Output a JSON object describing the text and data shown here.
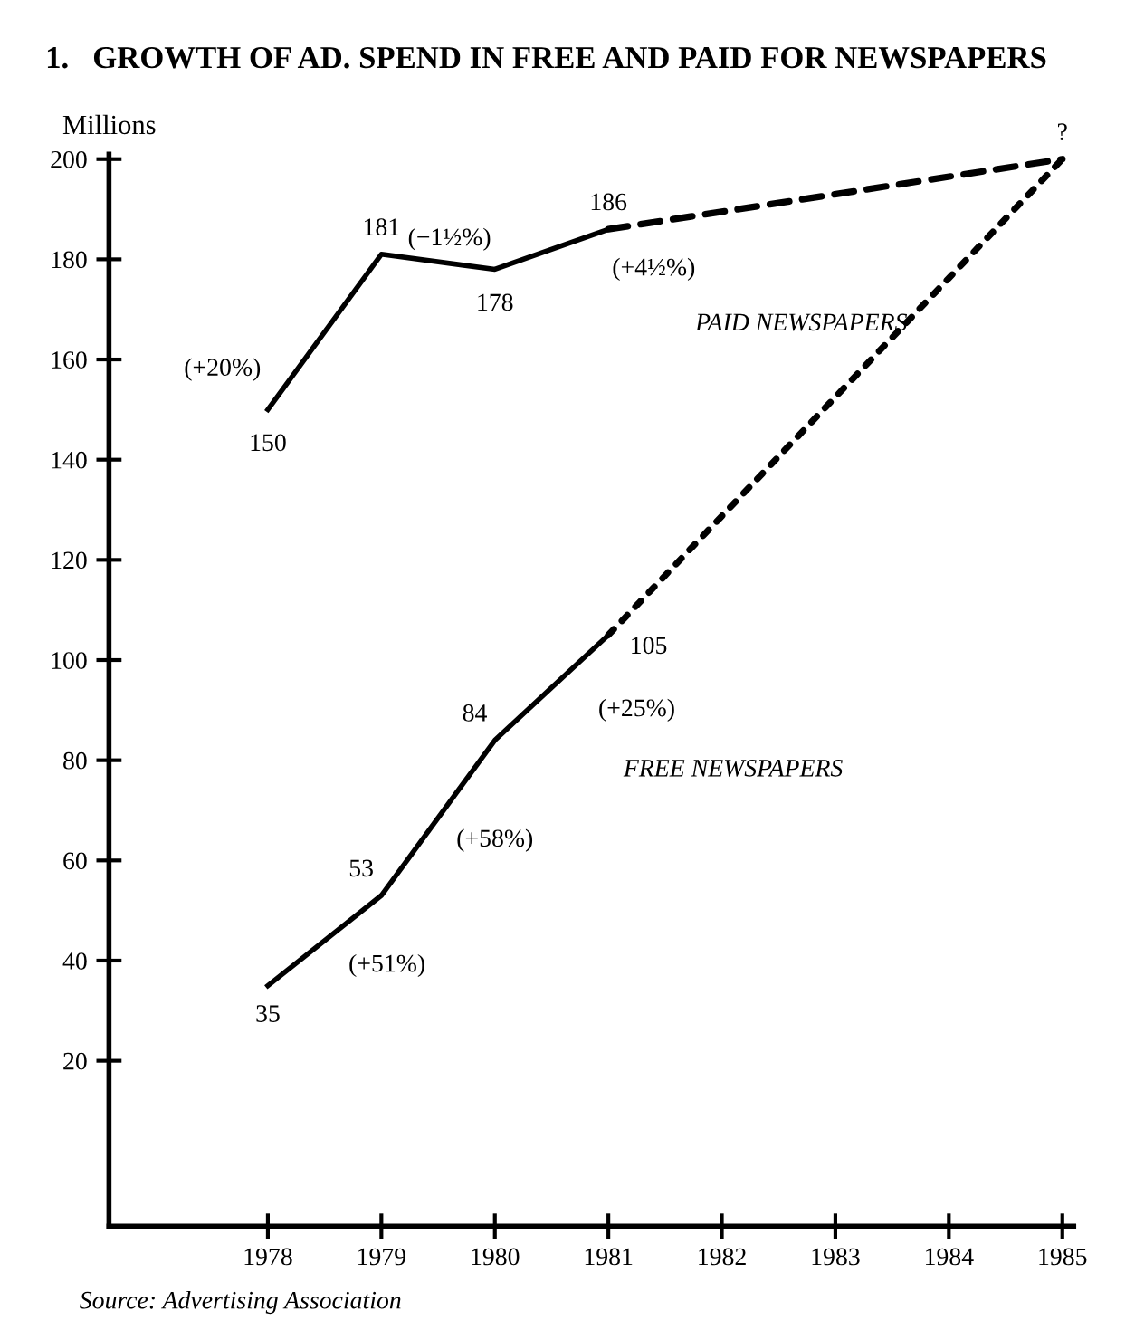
{
  "chart_data": {
    "type": "line",
    "title": "1.   GROWTH OF AD. SPEND IN FREE AND PAID FOR NEWSPAPERS",
    "ylabel": "Millions",
    "xlim": [
      1976.6,
      1985.1
    ],
    "ylim": [
      -13,
      201
    ],
    "xticks": [
      1978,
      1979,
      1980,
      1981,
      1982,
      1983,
      1984,
      1985
    ],
    "yticks": [
      20,
      40,
      60,
      80,
      100,
      120,
      140,
      160,
      180,
      200
    ],
    "series": [
      {
        "name": "PAID NEWSPAPERS",
        "color": "#000000",
        "x": [
          1978,
          1979,
          1980,
          1981
        ],
        "values": [
          150,
          181,
          178,
          186
        ],
        "line_style": "solid",
        "value_labels": [
          "150",
          "181",
          "178",
          "186"
        ]
      },
      {
        "color": "#000000",
        "x": [
          1981,
          1985
        ],
        "values": [
          186,
          200
        ],
        "line_style": "dashed",
        "value_labels": [
          null,
          "?"
        ]
      },
      {
        "name": "FREE NEWSPAPERS",
        "color": "#000000",
        "x": [
          1978,
          1979,
          1980,
          1981
        ],
        "values": [
          35,
          53,
          84,
          105
        ],
        "line_style": "solid",
        "value_labels": [
          "35",
          "53",
          "84",
          "105"
        ]
      },
      {
        "color": "#000000",
        "x": [
          1981,
          1985
        ],
        "values": [
          105,
          200
        ],
        "line_style": "dotted",
        "value_labels": [
          null,
          null
        ]
      }
    ],
    "annotations": [
      "(+20%)",
      "(−1½%)",
      "(+4½%)",
      "(+51%)",
      "(+58%)",
      "(+25%)",
      "Source: Advertising Association"
    ],
    "grid": false,
    "legend": false,
    "marker": "none"
  }
}
